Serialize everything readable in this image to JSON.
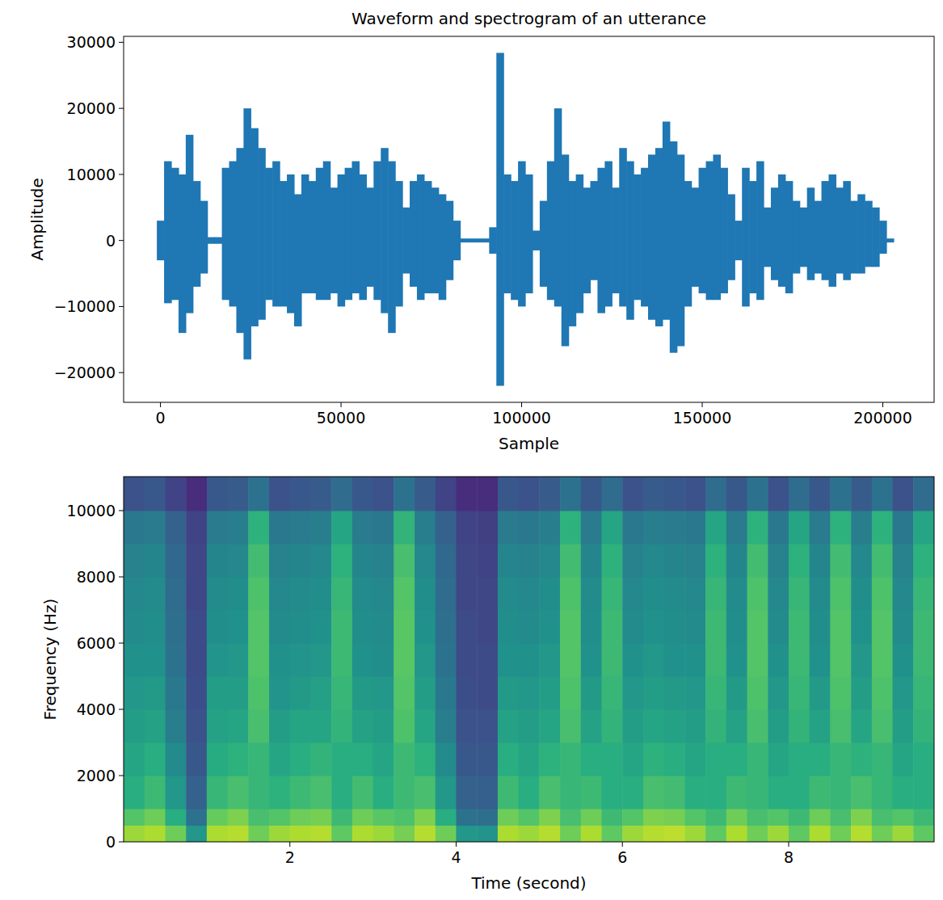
{
  "chart_data": [
    {
      "type": "waveform",
      "title": "Waveform and spectrogram of an utterance",
      "x_label": "Sample",
      "y_label": "Amplitude",
      "color": "#1f77b4",
      "xlim": [
        -10200,
        214200
      ],
      "ylim": [
        -24500,
        30900
      ],
      "xticks": [
        0,
        50000,
        100000,
        150000,
        200000
      ],
      "yticks": [
        {
          "value": -20000,
          "label": "−20000"
        },
        {
          "value": -10000,
          "label": "−10000"
        },
        0,
        10000,
        20000,
        30000
      ],
      "x": [
        0,
        2000,
        4000,
        6000,
        8000,
        10000,
        12000,
        14000,
        16000,
        18000,
        20000,
        22000,
        24000,
        26000,
        28000,
        30000,
        32000,
        34000,
        36000,
        38000,
        40000,
        42000,
        44000,
        46000,
        48000,
        50000,
        52000,
        54000,
        56000,
        58000,
        60000,
        62000,
        64000,
        66000,
        68000,
        70000,
        72000,
        74000,
        76000,
        78000,
        80000,
        82000,
        84000,
        86000,
        88000,
        90000,
        92000,
        94000,
        96000,
        98000,
        100000,
        102000,
        104000,
        106000,
        108000,
        110000,
        112000,
        114000,
        116000,
        118000,
        120000,
        122000,
        124000,
        126000,
        128000,
        130000,
        132000,
        134000,
        136000,
        138000,
        140000,
        142000,
        144000,
        146000,
        148000,
        150000,
        152000,
        154000,
        156000,
        158000,
        160000,
        162000,
        164000,
        166000,
        168000,
        170000,
        172000,
        174000,
        176000,
        178000,
        180000,
        182000,
        184000,
        186000,
        188000,
        190000,
        192000,
        194000,
        196000,
        198000,
        200000,
        202000
      ],
      "upper": [
        3000,
        12000,
        11000,
        10000,
        16000,
        9000,
        6000,
        500,
        500,
        11000,
        12000,
        14000,
        20000,
        17000,
        14000,
        11000,
        12000,
        9000,
        10000,
        7000,
        10000,
        9000,
        11000,
        12000,
        8000,
        10000,
        11000,
        12000,
        10000,
        8000,
        12000,
        14000,
        12000,
        9000,
        5000,
        9000,
        10000,
        9000,
        8000,
        7000,
        6000,
        3000,
        300,
        300,
        300,
        300,
        2000,
        28400,
        10000,
        9000,
        12000,
        10000,
        1500,
        6000,
        12000,
        20000,
        13000,
        9000,
        10000,
        8000,
        9000,
        11000,
        12000,
        8000,
        14000,
        12000,
        10000,
        11000,
        13000,
        14000,
        18000,
        15000,
        13000,
        9000,
        8000,
        11000,
        12000,
        13000,
        11000,
        7000,
        3000,
        11000,
        9000,
        12000,
        5000,
        8000,
        10000,
        9000,
        6000,
        5000,
        8000,
        6000,
        9000,
        10000,
        8000,
        9000,
        6000,
        7000,
        6000,
        5000,
        3000,
        300
      ],
      "lower": [
        -3000,
        -9500,
        -9000,
        -14000,
        -11000,
        -7000,
        -5000,
        -500,
        -500,
        -9000,
        -10000,
        -14000,
        -18000,
        -13000,
        -12000,
        -9000,
        -10000,
        -10000,
        -11000,
        -13000,
        -8000,
        -8000,
        -9000,
        -9000,
        -8000,
        -10000,
        -9000,
        -8000,
        -9000,
        -7000,
        -9000,
        -11000,
        -14000,
        -10000,
        -5000,
        -7000,
        -9000,
        -8000,
        -8000,
        -9000,
        -6000,
        -3000,
        -300,
        -300,
        -300,
        -300,
        -2000,
        -22000,
        -8000,
        -9000,
        -10000,
        -8000,
        -1500,
        -7000,
        -9000,
        -10000,
        -16000,
        -13000,
        -11000,
        -8000,
        -6000,
        -11000,
        -10000,
        -8000,
        -10000,
        -12000,
        -9000,
        -10000,
        -12000,
        -13000,
        -12000,
        -17000,
        -16000,
        -10000,
        -7000,
        -8000,
        -9000,
        -9000,
        -8000,
        -6000,
        -3000,
        -10000,
        -8000,
        -9000,
        -4000,
        -6000,
        -7000,
        -8000,
        -5000,
        -4000,
        -6000,
        -5000,
        -6000,
        -7000,
        -5000,
        -6000,
        -5000,
        -5000,
        -4000,
        -4000,
        -2000,
        -300
      ]
    },
    {
      "type": "heatmap",
      "x_label": "Time (second)",
      "y_label": "Frequency (Hz)",
      "xlim": [
        0,
        9.75
      ],
      "ylim": [
        0,
        11025
      ],
      "xticks": [
        2,
        4,
        6,
        8
      ],
      "yticks": [
        0,
        2000,
        4000,
        6000,
        8000,
        10000
      ],
      "zlim": [
        -80,
        0
      ],
      "time_bins": [
        0,
        0.25,
        0.5,
        0.75,
        1,
        1.25,
        1.5,
        1.75,
        2,
        2.25,
        2.5,
        2.75,
        3,
        3.25,
        3.5,
        3.75,
        4,
        4.25,
        4.5,
        4.75,
        5,
        5.25,
        5.5,
        5.75,
        6,
        6.25,
        6.5,
        6.75,
        7,
        7.25,
        7.5,
        7.75,
        8,
        8.25,
        8.5,
        8.75,
        9,
        9.25,
        9.5,
        9.75
      ],
      "freq_bins": [
        0,
        500,
        1000,
        2000,
        3000,
        4000,
        5000,
        6000,
        7000,
        8000,
        9000,
        10000,
        11025
      ],
      "cells": [
        [
          -12,
          -22,
          -30,
          -33,
          -36,
          -38,
          -40,
          -42,
          -43,
          -45,
          -48,
          -60
        ],
        [
          -10,
          -18,
          -26,
          -30,
          -34,
          -37,
          -40,
          -41,
          -42,
          -44,
          -47,
          -58
        ],
        [
          -18,
          -30,
          -38,
          -42,
          -46,
          -48,
          -50,
          -51,
          -52,
          -53,
          -55,
          -64
        ],
        [
          -38,
          -50,
          -55,
          -58,
          -60,
          -61,
          -62,
          -62,
          -63,
          -63,
          -64,
          -70
        ],
        [
          -10,
          -19,
          -27,
          -31,
          -34,
          -36,
          -39,
          -41,
          -42,
          -44,
          -47,
          -58
        ],
        [
          -9,
          -16,
          -24,
          -29,
          -33,
          -36,
          -38,
          -40,
          -41,
          -43,
          -46,
          -57
        ],
        [
          -18,
          -24,
          -27,
          -27,
          -24,
          -23,
          -22,
          -22,
          -23,
          -25,
          -29,
          -50
        ],
        [
          -12,
          -22,
          -29,
          -33,
          -36,
          -39,
          -40,
          -42,
          -43,
          -45,
          -48,
          -60
        ],
        [
          -10,
          -18,
          -26,
          -30,
          -33,
          -37,
          -39,
          -41,
          -42,
          -44,
          -47,
          -58
        ],
        [
          -9,
          -17,
          -24,
          -28,
          -33,
          -35,
          -38,
          -40,
          -41,
          -43,
          -46,
          -57
        ],
        [
          -20,
          -26,
          -30,
          -30,
          -28,
          -27,
          -26,
          -26,
          -27,
          -29,
          -33,
          -52
        ],
        [
          -10,
          -18,
          -25,
          -30,
          -34,
          -37,
          -40,
          -41,
          -42,
          -44,
          -47,
          -58
        ],
        [
          -12,
          -21,
          -30,
          -33,
          -36,
          -38,
          -41,
          -42,
          -43,
          -45,
          -48,
          -60
        ],
        [
          -17,
          -23,
          -26,
          -26,
          -23,
          -22,
          -21,
          -21,
          -22,
          -24,
          -28,
          -50
        ],
        [
          -9,
          -16,
          -24,
          -29,
          -33,
          -36,
          -38,
          -40,
          -41,
          -43,
          -46,
          -57
        ],
        [
          -18,
          -30,
          -38,
          -42,
          -46,
          -48,
          -50,
          -51,
          -52,
          -53,
          -55,
          -64
        ],
        [
          -38,
          -50,
          -55,
          -58,
          -60,
          -61,
          -62,
          -62,
          -63,
          -63,
          -64,
          -70
        ],
        [
          -39,
          -51,
          -56,
          -58,
          -60,
          -62,
          -62,
          -63,
          -63,
          -64,
          -65,
          -70
        ],
        [
          -10,
          -18,
          -26,
          -30,
          -34,
          -37,
          -40,
          -41,
          -42,
          -44,
          -47,
          -58
        ],
        [
          -12,
          -22,
          -30,
          -33,
          -36,
          -38,
          -40,
          -42,
          -43,
          -45,
          -48,
          -60
        ],
        [
          -9,
          -16,
          -24,
          -29,
          -33,
          -36,
          -38,
          -40,
          -41,
          -43,
          -46,
          -57
        ],
        [
          -18,
          -24,
          -27,
          -27,
          -24,
          -23,
          -22,
          -22,
          -23,
          -25,
          -29,
          -50
        ],
        [
          -10,
          -18,
          -26,
          -30,
          -34,
          -37,
          -40,
          -41,
          -42,
          -44,
          -47,
          -58
        ],
        [
          -20,
          -26,
          -30,
          -30,
          -28,
          -27,
          -26,
          -26,
          -27,
          -29,
          -33,
          -52
        ],
        [
          -12,
          -22,
          -30,
          -33,
          -36,
          -38,
          -40,
          -42,
          -43,
          -45,
          -48,
          -60
        ],
        [
          -9,
          -16,
          -24,
          -29,
          -33,
          -36,
          -38,
          -40,
          -41,
          -43,
          -46,
          -57
        ],
        [
          -8,
          -17,
          -25,
          -30,
          -34,
          -37,
          -40,
          -41,
          -42,
          -44,
          -47,
          -58
        ],
        [
          -12,
          -22,
          -30,
          -33,
          -36,
          -38,
          -40,
          -42,
          -43,
          -45,
          -48,
          -60
        ],
        [
          -20,
          -26,
          -30,
          -30,
          -28,
          -27,
          -26,
          -26,
          -27,
          -29,
          -33,
          -52
        ],
        [
          -10,
          -18,
          -26,
          -30,
          -34,
          -37,
          -40,
          -41,
          -42,
          -44,
          -47,
          -58
        ],
        [
          -18,
          -24,
          -27,
          -27,
          -24,
          -23,
          -22,
          -22,
          -23,
          -25,
          -29,
          -50
        ],
        [
          -12,
          -22,
          -30,
          -33,
          -36,
          -38,
          -40,
          -42,
          -43,
          -45,
          -48,
          -60
        ],
        [
          -20,
          -26,
          -30,
          -30,
          -28,
          -27,
          -26,
          -26,
          -27,
          -29,
          -33,
          -52
        ],
        [
          -10,
          -18,
          -26,
          -30,
          -34,
          -37,
          -40,
          -41,
          -42,
          -44,
          -47,
          -58
        ],
        [
          -18,
          -24,
          -27,
          -27,
          -24,
          -23,
          -22,
          -22,
          -23,
          -25,
          -29,
          -50
        ],
        [
          -9,
          -16,
          -24,
          -29,
          -33,
          -36,
          -38,
          -40,
          -41,
          -43,
          -46,
          -57
        ],
        [
          -18,
          -24,
          -27,
          -27,
          -24,
          -23,
          -22,
          -22,
          -23,
          -25,
          -29,
          -50
        ],
        [
          -12,
          -22,
          -30,
          -33,
          -36,
          -38,
          -40,
          -42,
          -43,
          -45,
          -48,
          -60
        ],
        [
          -20,
          -26,
          -30,
          -30,
          -28,
          -27,
          -26,
          -26,
          -27,
          -29,
          -33,
          -52
        ]
      ]
    }
  ]
}
